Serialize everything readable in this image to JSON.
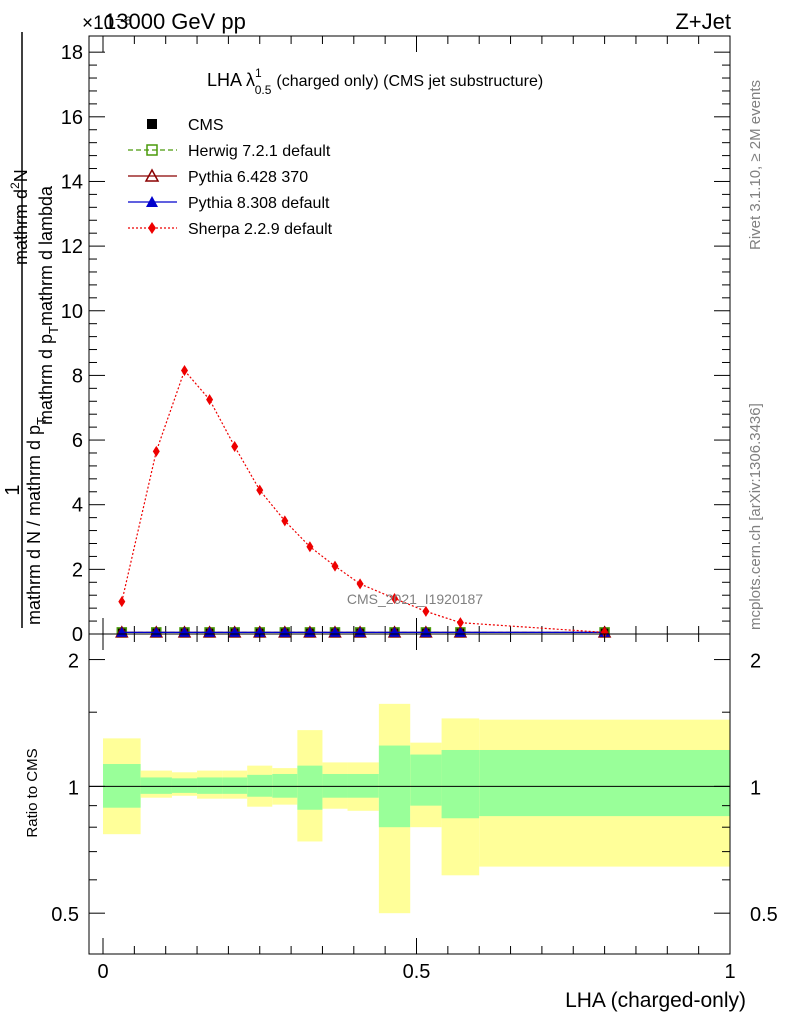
{
  "header": {
    "left": "13000 GeV pp",
    "right": "Z+Jet",
    "exponent": "×10⁻⁶"
  },
  "side": {
    "rivet": "Rivet 3.1.10, ≥ 2M events",
    "mcplots": "mcplots.cern.ch [arXiv:1306.3436]"
  },
  "watermark": "CMS_2021_I1920187",
  "chart_data": [
    {
      "type": "line",
      "title": "LHA λ^1_0.5 (charged only) (CMS jet substructure)",
      "title_parts": {
        "main": "LHA λ",
        "sup": "1",
        "sub": "0.5",
        "rest": "(charged only) (CMS jet substructure)"
      },
      "xlabel": "LHA (charged-only)",
      "ylabel": "1 / (mathrm d N / mathrm d p_T) · mathrm d²N / (mathrm d p_T mathrm d lambda)",
      "ylabel_parts": {
        "numer_one": "1",
        "denom": "mathrm d N / mathrm d p",
        "denom_sub": "T",
        "numer2": "mathrm d",
        "numer2_sup": "2",
        "numer2_b": "N",
        "denom2_a": "mathrm d p",
        "denom2_sub": "T",
        "denom2_b": "mathrm d lambda"
      },
      "xlim": [
        0,
        1
      ],
      "ylim": [
        0,
        18.5
      ],
      "y_scale_note": "×10⁻⁶",
      "yticks": [
        0,
        2,
        4,
        6,
        8,
        10,
        12,
        14,
        16,
        18
      ],
      "ytick_labels": [
        "0",
        "2",
        "4",
        "6",
        "8",
        "10",
        "12",
        "14",
        "16",
        "18"
      ],
      "legend_position": "top-left",
      "series": [
        {
          "name": "CMS",
          "color": "#000000",
          "marker": "square",
          "x": [
            0.03,
            0.085,
            0.13,
            0.17,
            0.21,
            0.25,
            0.29,
            0.33,
            0.37,
            0.41,
            0.465,
            0.515,
            0.57,
            0.8
          ],
          "y": [
            0.05,
            0.05,
            0.05,
            0.05,
            0.05,
            0.05,
            0.05,
            0.05,
            0.05,
            0.05,
            0.05,
            0.05,
            0.05,
            0.05
          ]
        },
        {
          "name": "Herwig 7.2.1 default",
          "color": "#4a9a0a",
          "marker": "open-square",
          "dash": "dashed",
          "x": [
            0.03,
            0.085,
            0.13,
            0.17,
            0.21,
            0.25,
            0.29,
            0.33,
            0.37,
            0.41,
            0.465,
            0.515,
            0.57,
            0.8
          ],
          "y": [
            0.05,
            0.05,
            0.05,
            0.05,
            0.05,
            0.05,
            0.05,
            0.05,
            0.05,
            0.05,
            0.05,
            0.05,
            0.05,
            0.05
          ]
        },
        {
          "name": "Pythia 6.428 370",
          "color": "#8b0000",
          "marker": "open-triangle",
          "dash": "solid",
          "x": [
            0.03,
            0.085,
            0.13,
            0.17,
            0.21,
            0.25,
            0.29,
            0.33,
            0.37,
            0.41,
            0.465,
            0.515,
            0.57,
            0.8
          ],
          "y": [
            0.05,
            0.05,
            0.05,
            0.05,
            0.05,
            0.05,
            0.05,
            0.05,
            0.05,
            0.05,
            0.05,
            0.05,
            0.05,
            0.05
          ]
        },
        {
          "name": "Pythia 8.308 default",
          "color": "#0000cc",
          "marker": "triangle",
          "dash": "solid",
          "x": [
            0.03,
            0.085,
            0.13,
            0.17,
            0.21,
            0.25,
            0.29,
            0.33,
            0.37,
            0.41,
            0.465,
            0.515,
            0.57,
            0.8
          ],
          "y": [
            0.05,
            0.05,
            0.05,
            0.05,
            0.05,
            0.05,
            0.05,
            0.05,
            0.05,
            0.05,
            0.05,
            0.05,
            0.05,
            0.05
          ]
        },
        {
          "name": "Sherpa 2.2.9 default",
          "color": "#ee0000",
          "marker": "diamond",
          "dash": "dotted",
          "x": [
            0.03,
            0.085,
            0.13,
            0.17,
            0.21,
            0.25,
            0.29,
            0.33,
            0.37,
            0.41,
            0.465,
            0.515,
            0.57,
            0.8
          ],
          "y": [
            1.0,
            5.65,
            8.15,
            7.25,
            5.8,
            4.45,
            3.5,
            2.7,
            2.1,
            1.55,
            1.1,
            0.7,
            0.35,
            0.05
          ]
        }
      ]
    },
    {
      "type": "area",
      "ylabel": "Ratio to CMS",
      "xlim": [
        0,
        1
      ],
      "ylim": [
        0.4,
        2.3
      ],
      "y_scale": "log",
      "xticks": [
        0,
        0.5,
        1
      ],
      "xtick_labels": [
        "0",
        "0.5",
        "1"
      ],
      "yticks": [
        0.5,
        1,
        2
      ],
      "ytick_labels": [
        "0.5",
        "1",
        "2"
      ],
      "reference_line": 1,
      "bands": {
        "bin_edges": [
          0,
          0.06,
          0.11,
          0.15,
          0.19,
          0.23,
          0.27,
          0.31,
          0.35,
          0.39,
          0.44,
          0.49,
          0.54,
          0.6,
          1.0
        ],
        "stat_low": [
          0.89,
          0.96,
          0.965,
          0.96,
          0.96,
          0.945,
          0.94,
          0.88,
          0.94,
          0.94,
          0.8,
          0.9,
          0.84,
          0.85
        ],
        "stat_high": [
          1.13,
          1.05,
          1.045,
          1.05,
          1.05,
          1.065,
          1.07,
          1.12,
          1.07,
          1.07,
          1.25,
          1.19,
          1.22,
          1.22
        ],
        "total_low": [
          0.77,
          0.94,
          0.95,
          0.935,
          0.935,
          0.895,
          0.905,
          0.74,
          0.885,
          0.875,
          0.5,
          0.8,
          0.615,
          0.645
        ],
        "total_high": [
          1.3,
          1.09,
          1.08,
          1.09,
          1.09,
          1.12,
          1.105,
          1.36,
          1.14,
          1.14,
          1.57,
          1.27,
          1.45,
          1.44
        ],
        "stat_color": "#99ff99",
        "total_color": "#ffff99"
      }
    }
  ]
}
